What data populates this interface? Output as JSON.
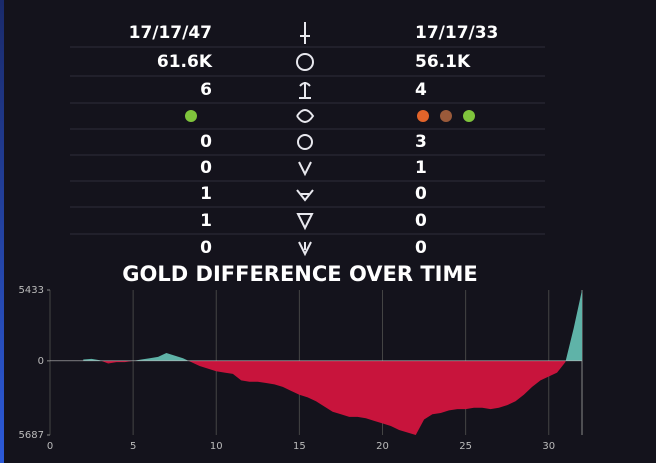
{
  "stats": {
    "rows": [
      {
        "left": "17/17/47",
        "right": "17/17/33"
      },
      {
        "left": "61.6K",
        "right": "56.1K"
      },
      {
        "left": "6",
        "right": "4"
      },
      {
        "left": "0",
        "right": "3"
      },
      {
        "left": "0",
        "right": "1"
      },
      {
        "left": "1",
        "right": "0"
      },
      {
        "left": "1",
        "right": "0"
      },
      {
        "left": "0",
        "right": "0"
      }
    ]
  },
  "chart_data": {
    "type": "area",
    "title": "GOLD DIFFERENCE OVER TIME",
    "x": [
      2,
      2.5,
      3,
      3.5,
      4,
      4.5,
      5,
      5.5,
      6,
      6.5,
      7,
      7.5,
      8,
      8.5,
      9,
      9.5,
      10,
      10.5,
      11,
      11.5,
      12,
      12.5,
      13,
      13.5,
      14,
      14.5,
      15,
      15.5,
      16,
      16.5,
      17,
      17.5,
      18,
      18.5,
      19,
      19.5,
      20,
      20.5,
      21,
      21.5,
      22,
      22.5,
      23,
      23.5,
      24,
      24.5,
      25,
      25.5,
      26,
      26.5,
      27,
      27.5,
      28,
      28.5,
      29,
      29.5,
      30,
      30.5,
      31,
      31.5,
      32
    ],
    "values": [
      100,
      150,
      50,
      -200,
      -100,
      -100,
      0,
      100,
      200,
      300,
      600,
      400,
      200,
      -100,
      -400,
      -600,
      -800,
      -900,
      -1000,
      -1500,
      -1600,
      -1600,
      -1700,
      -1800,
      -2000,
      -2300,
      -2600,
      -2800,
      -3100,
      -3500,
      -3900,
      -4100,
      -4300,
      -4300,
      -4400,
      -4600,
      -4800,
      -5000,
      -5300,
      -5500,
      -5687,
      -4500,
      -4100,
      -4000,
      -3800,
      -3700,
      -3700,
      -3600,
      -3600,
      -3700,
      -3600,
      -3400,
      -3100,
      -2600,
      -2000,
      -1500,
      -1200,
      -900,
      -100,
      2500,
      5433
    ],
    "positive_color": "#5fb3a8",
    "negative_color": "#c8143c",
    "xlim": [
      0,
      32
    ],
    "ylim": [
      -5687,
      5433
    ],
    "xticks": [
      0,
      5,
      10,
      15,
      20,
      25,
      30
    ],
    "yticks": [
      5433,
      0,
      {
        "value": -5687,
        "label": "5687"
      }
    ],
    "grid": true
  }
}
